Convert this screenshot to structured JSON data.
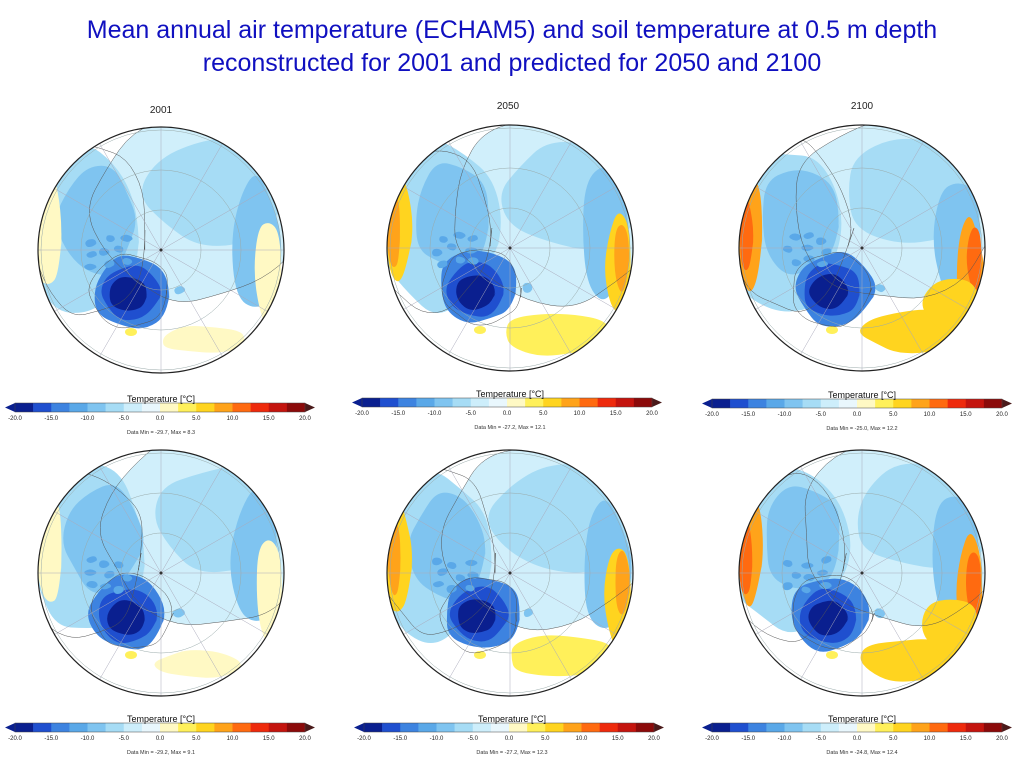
{
  "title": {
    "line1": "Mean annual air temperature (ECHAM5) and soil temperature at 0.5 m depth",
    "line2": "reconstructed for 2001 and predicted for 2050 and 2100"
  },
  "colorbar": {
    "title": "Temperature [°C]",
    "ticks": [
      "-20.0",
      "-15.0",
      "-10.0",
      "-5.0",
      "0.0",
      "5.0",
      "10.0",
      "15.0",
      "20.0"
    ],
    "colors": [
      "#0a1f8f",
      "#1f4fcf",
      "#3d83e0",
      "#5aa8e8",
      "#7fc4f0",
      "#a6dcf5",
      "#cdeefb",
      "#e9f7fd",
      "#fff9c4",
      "#fff05a",
      "#ffd41f",
      "#ffa31a",
      "#ff6a10",
      "#ee2a0c",
      "#c4140e",
      "#8b0a0a"
    ],
    "arrow_color": "#4a1a1a"
  },
  "panels": [
    {
      "year": "2001",
      "minmax": "Data Min = -29.7, Max = 8.3",
      "warmth": 0
    },
    {
      "year": "2050",
      "minmax": "Data Min = -27.2, Max = 12.1",
      "warmth": 1
    },
    {
      "year": "2100",
      "minmax": "Data Min = -25.0, Max = 12.2",
      "warmth": 2
    },
    {
      "year": "",
      "minmax": "Data Min = -29.2, Max = 9.1",
      "warmth": 0
    },
    {
      "year": "",
      "minmax": "Data Min = -27.2, Max = 12.3",
      "warmth": 1
    },
    {
      "year": "",
      "minmax": "Data Min = -24.8, Max = 12.4",
      "warmth": 2
    }
  ]
}
